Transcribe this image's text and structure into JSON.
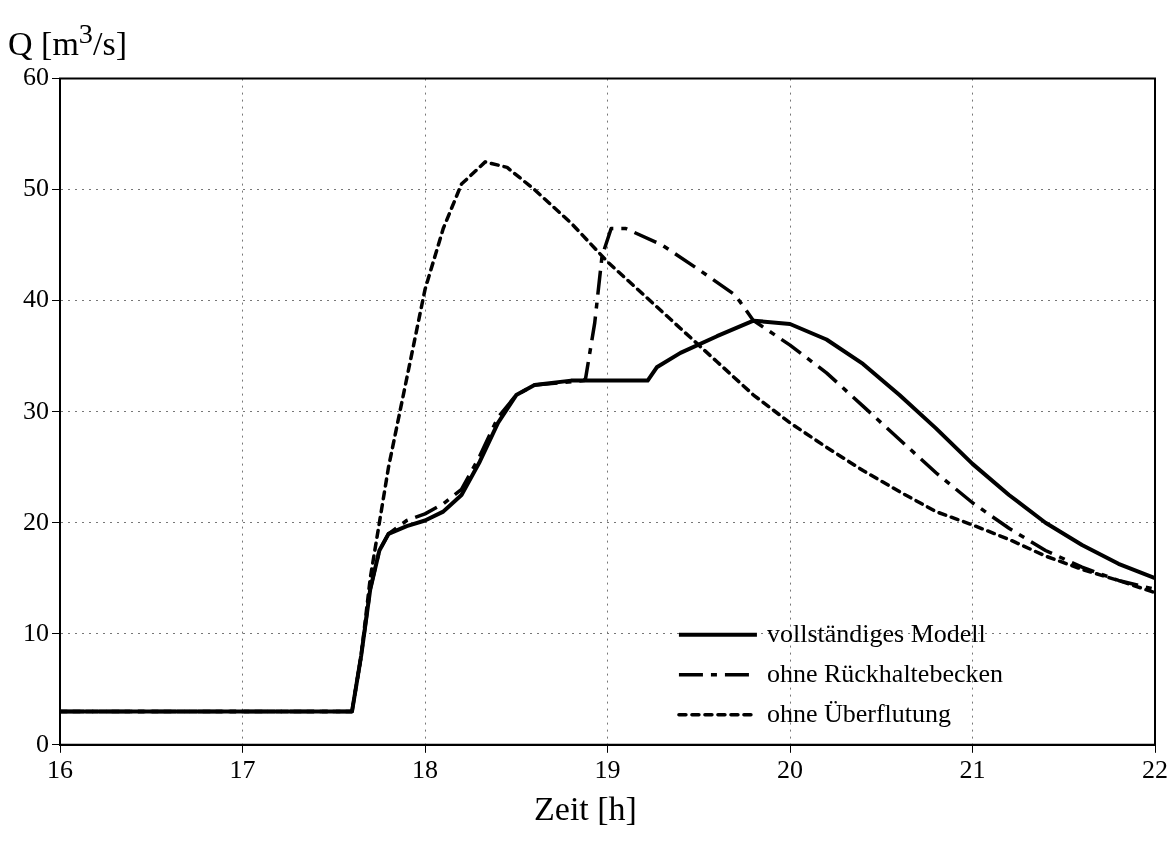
{
  "chart_data": {
    "type": "line",
    "xlabel": "Zeit [h]",
    "ylabel": "Q [m$^{3}$/s]",
    "xlim": [
      16,
      22
    ],
    "ylim": [
      0,
      60
    ],
    "xticks": [
      16,
      17,
      18,
      19,
      20,
      21,
      22
    ],
    "yticks": [
      0,
      10,
      20,
      30,
      40,
      50,
      60
    ],
    "grid": true,
    "legend": "bottom right",
    "marker": "none",
    "series": [
      {
        "name": "vollständiges Modell",
        "color": "#000000",
        "line_style": "solid",
        "x": [
          16,
          17.6,
          17.65,
          17.7,
          17.75,
          17.8,
          17.9,
          18.0,
          18.1,
          18.2,
          18.3,
          18.4,
          18.5,
          18.6,
          18.8,
          19.0,
          19.22,
          19.27,
          19.4,
          19.6,
          19.8,
          20.0,
          20.2,
          20.4,
          20.6,
          20.8,
          21.0,
          21.2,
          21.4,
          21.6,
          21.8,
          22
        ],
        "values": [
          3,
          3,
          8,
          14,
          17.5,
          19,
          19.7,
          20.2,
          21,
          22.5,
          25.5,
          29,
          31.5,
          32.4,
          32.8,
          32.8,
          32.8,
          34,
          35.3,
          36.8,
          38.2,
          37.9,
          36.5,
          34.3,
          31.5,
          28.5,
          25.3,
          22.5,
          20,
          18,
          16.3,
          15
        ]
      },
      {
        "name": "ohne Rückhaltebecken",
        "color": "#000000",
        "line_style": "dashed",
        "x": [
          16,
          17.6,
          17.65,
          17.7,
          17.75,
          17.8,
          17.9,
          18.0,
          18.1,
          18.2,
          18.3,
          18.4,
          18.5,
          18.6,
          18.87,
          18.88,
          18.93,
          18.97,
          19.02,
          19.1,
          19.3,
          19.5,
          19.7,
          19.8,
          20.0,
          20.2,
          20.4,
          20.6,
          20.8,
          21.0,
          21.2,
          21.4,
          21.6,
          21.8,
          22
        ],
        "values": [
          3,
          3,
          8,
          14,
          17.5,
          19,
          20.2,
          20.8,
          21.7,
          23,
          26,
          29.5,
          31.5,
          32.4,
          32.8,
          33,
          38,
          44,
          46.5,
          46.5,
          45,
          42.8,
          40.5,
          38.2,
          36,
          33.5,
          30.5,
          27.5,
          24.5,
          21.8,
          19.5,
          17.5,
          16,
          14.8,
          14
        ]
      },
      {
        "name": "ohne Überflutung",
        "color": "#000000",
        "line_style": "dotted",
        "x": [
          16,
          17.6,
          17.65,
          17.7,
          17.8,
          17.9,
          18.0,
          18.1,
          18.2,
          18.33,
          18.45,
          18.6,
          18.8,
          19.0,
          19.2,
          19.4,
          19.6,
          19.8,
          20.0,
          20.2,
          20.4,
          20.6,
          20.8,
          21.0,
          21.2,
          21.4,
          21.6,
          21.8,
          22
        ],
        "values": [
          3,
          3,
          8,
          15,
          25,
          33,
          41,
          46.5,
          50.5,
          52.5,
          52,
          50,
          47,
          43.5,
          40.5,
          37.5,
          34.5,
          31.5,
          29,
          26.8,
          24.7,
          22.8,
          21,
          19.8,
          18.5,
          17,
          15.8,
          14.8,
          13.7
        ]
      }
    ]
  }
}
